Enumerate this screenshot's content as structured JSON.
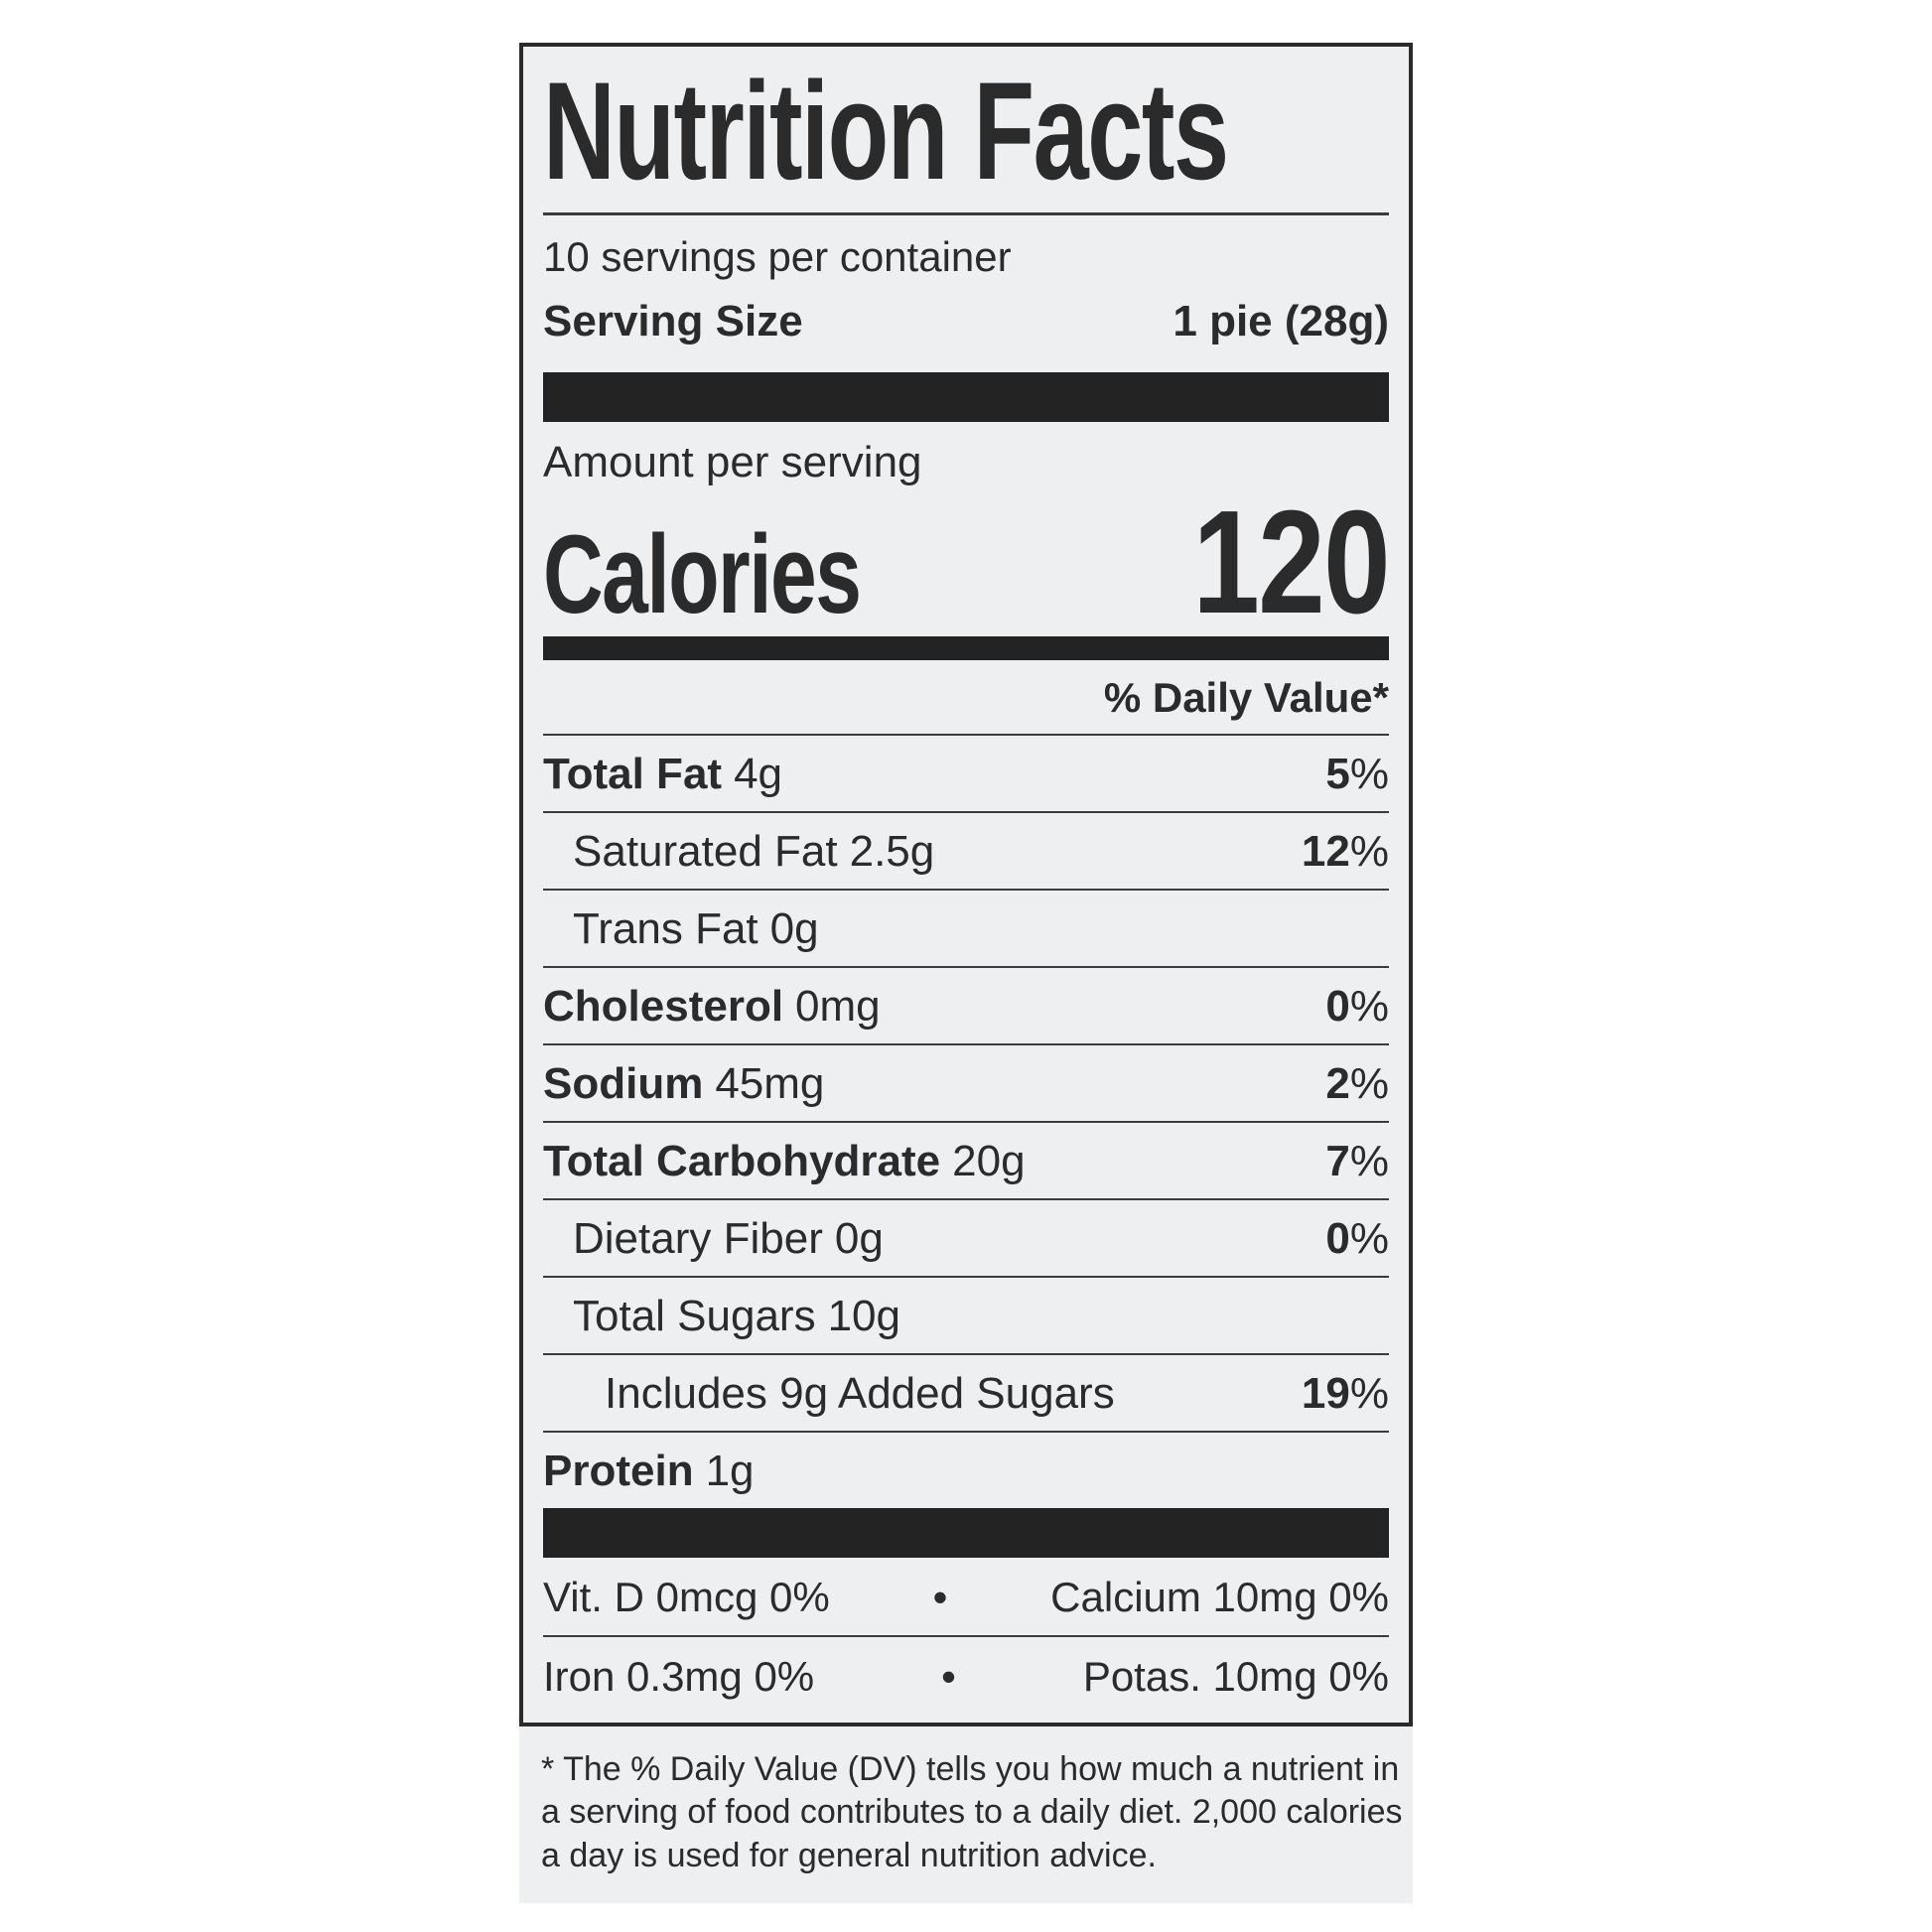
{
  "label": {
    "colors": {
      "panel_bg": "#edeff1",
      "ink": "#2b2b2b",
      "bar": "#232323"
    },
    "title": "Nutrition Facts",
    "servings_per_container": "10 servings per container",
    "serving_size": {
      "label": "Serving Size",
      "value": "1 pie (28g)"
    },
    "amount_per_serving": "Amount per serving",
    "calories": {
      "label": "Calories",
      "value": "120"
    },
    "daily_value_header": "% Daily Value*",
    "rows": [
      {
        "name": "Total Fat",
        "amount": "4g",
        "dv_num": "5",
        "dv_sign": "%"
      },
      {
        "name": "Saturated Fat",
        "amount": "2.5g",
        "dv_num": "12",
        "dv_sign": "%"
      },
      {
        "name": "Trans Fat",
        "amount": "0g",
        "dv_num": "",
        "dv_sign": ""
      },
      {
        "name": "Cholesterol",
        "amount": "0mg",
        "dv_num": "0",
        "dv_sign": "%"
      },
      {
        "name": "Sodium",
        "amount": "45mg",
        "dv_num": "2",
        "dv_sign": "%"
      },
      {
        "name": "Total Carbohydrate",
        "amount": "20g",
        "dv_num": "7",
        "dv_sign": "%"
      },
      {
        "name": "Dietary Fiber",
        "amount": "0g",
        "dv_num": "0",
        "dv_sign": "%"
      },
      {
        "name": "Total Sugars",
        "amount": "10g",
        "dv_num": "",
        "dv_sign": ""
      },
      {
        "name": "Includes 9g Added Sugars",
        "amount": "",
        "dv_num": "19",
        "dv_sign": "%"
      },
      {
        "name": "Protein",
        "amount": "1g",
        "dv_num": "",
        "dv_sign": ""
      }
    ],
    "micronutrients": [
      {
        "left": "Vit. D 0mcg 0%",
        "bullet": "•",
        "right": "Calcium 10mg 0%"
      },
      {
        "left": "Iron 0.3mg 0%",
        "bullet": "•",
        "right": "Potas. 10mg 0%"
      }
    ],
    "footnote_lines": [
      "* The % Daily Value (DV) tells you how much a nutrient in",
      "a serving of food contributes to a daily diet. 2,000 calories",
      "a day is used for general nutrition advice."
    ]
  }
}
